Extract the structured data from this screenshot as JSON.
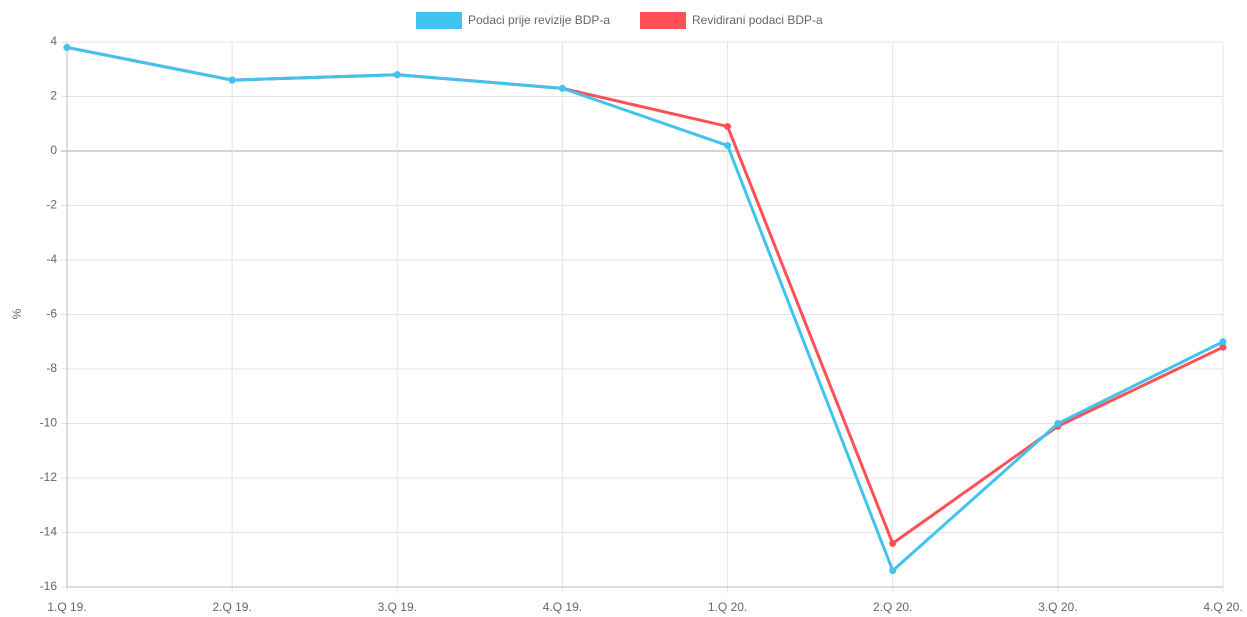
{
  "chart_data": {
    "type": "line",
    "categories": [
      "1.Q 19.",
      "2.Q 19.",
      "3.Q 19.",
      "4.Q 19.",
      "1.Q 20.",
      "2.Q 20.",
      "3.Q 20.",
      "4.Q 20."
    ],
    "series": [
      {
        "name": "Podaci prije revizije BDP-a",
        "color": "#40c4ed",
        "values": [
          3.8,
          2.6,
          2.8,
          2.3,
          0.2,
          -15.4,
          -10.0,
          -7.0
        ]
      },
      {
        "name": "Revidirani podaci BDP-a",
        "color": "#ff5057",
        "values": [
          3.8,
          2.6,
          2.8,
          2.3,
          0.9,
          -14.4,
          -10.1,
          -7.2
        ]
      }
    ],
    "ylabel": "%",
    "ylim": [
      -16,
      4
    ],
    "yticks": [
      -16,
      -14,
      -12,
      -10,
      -8,
      -6,
      -4,
      -2,
      0,
      2,
      4
    ],
    "grid": true,
    "legend": "top"
  }
}
